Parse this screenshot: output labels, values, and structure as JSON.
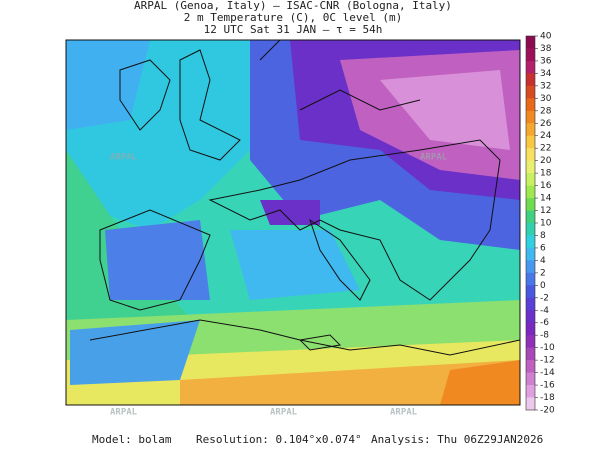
{
  "header": {
    "line1": "ARPAL (Genoa, Italy)  —  ISAC-CNR (Bologna, Italy)",
    "line2": "2 m Temperature (C), 0C level (m)",
    "line3": "12 UTC Sat 31 JAN  —  τ = 54h"
  },
  "watermark": "ARPAL",
  "colorbar": {
    "ticks": [
      40,
      38,
      36,
      34,
      32,
      30,
      28,
      26,
      24,
      22,
      20,
      18,
      16,
      14,
      12,
      10,
      8,
      6,
      4,
      2,
      0,
      -2,
      -4,
      -6,
      -8,
      -10,
      -12,
      -14,
      -16,
      -18,
      -20
    ],
    "colors": [
      "#8b0a50",
      "#a0105a",
      "#b5206a",
      "#c83030",
      "#d84a20",
      "#e86a18",
      "#f08a20",
      "#f5a830",
      "#f8c840",
      "#f8e060",
      "#e8f070",
      "#c8f060",
      "#a0e850",
      "#70dc50",
      "#40d080",
      "#30d0b0",
      "#30d0e0",
      "#40b8f0",
      "#4898f0",
      "#4878e8",
      "#4858e0",
      "#5a40d8",
      "#6a30c8",
      "#7a28c0",
      "#9030b8",
      "#a848b8",
      "#c060c0",
      "#d080d0",
      "#e0a0e0",
      "#ecc8ec"
    ]
  },
  "footer": {
    "model": "Model: bolam",
    "resolution": "Resolution: 0.104°x0.074°",
    "analysis": "Analysis: Thu 06Z29JAN2026"
  }
}
